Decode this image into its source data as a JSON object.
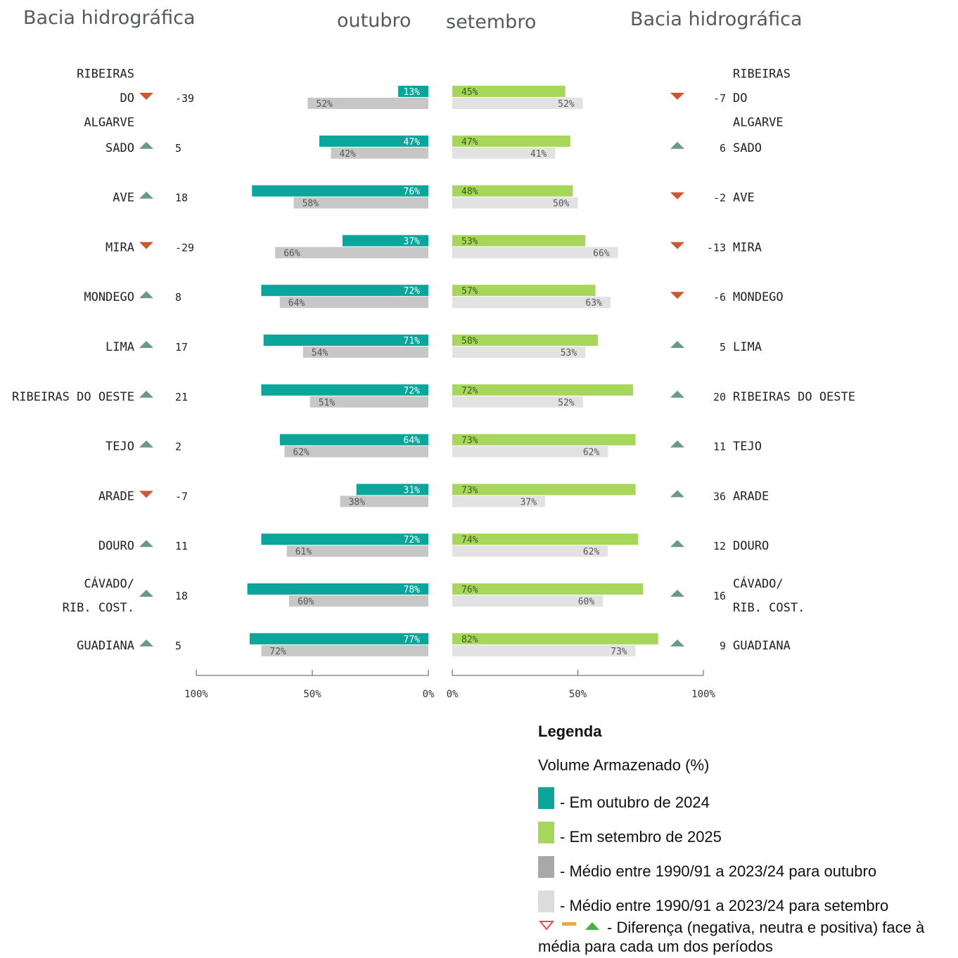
{
  "headers": {
    "left_basin": "Bacia hidrográfica",
    "oct": "outubro",
    "sep": "setembro",
    "right_basin": "Bacia hidrográfica"
  },
  "colors": {
    "oct": "#0aa69b",
    "sep": "#a6d65a",
    "oct_avg": "#c7c7c7",
    "sep_avg": "#e2e2e2",
    "down": "#c85a33",
    "up": "#6a9a82",
    "legend_neutral": "#f0a830"
  },
  "chart_data": {
    "type": "bar",
    "orientation": "horizontal, back-to-back",
    "xlim": [
      0,
      100
    ],
    "x_ticks_left": [
      "100%",
      "50%",
      "0%"
    ],
    "x_ticks_right": [
      "0%",
      "50%",
      "100%"
    ],
    "series": [
      {
        "name": "Em outubro de 2024",
        "values": [
          13,
          47,
          76,
          37,
          72,
          71,
          72,
          64,
          31,
          72,
          78,
          77
        ]
      },
      {
        "name": "Médio entre 1990/91 a 2023/24 para outubro",
        "values": [
          52,
          42,
          58,
          66,
          64,
          54,
          51,
          62,
          38,
          61,
          60,
          72
        ]
      },
      {
        "name": "Em setembro de 2025",
        "values": [
          45,
          47,
          48,
          53,
          57,
          58,
          72,
          73,
          73,
          74,
          76,
          82
        ]
      },
      {
        "name": "Médio entre 1990/91 a 2023/24 para setembro",
        "values": [
          52,
          41,
          50,
          66,
          63,
          53,
          52,
          62,
          37,
          62,
          60,
          73
        ]
      }
    ],
    "basins": [
      {
        "name": "RIBEIRAS DO ALGARVE",
        "lines": [
          "RIBEIRAS",
          "DO",
          "ALGARVE"
        ],
        "oct": 13,
        "oct_avg": 52,
        "oct_diff": "-39",
        "oct_dir": "down",
        "sep": 45,
        "sep_avg": 52,
        "sep_diff": "-7",
        "sep_dir": "down"
      },
      {
        "name": "SADO",
        "lines": [
          "SADO"
        ],
        "oct": 47,
        "oct_avg": 42,
        "oct_diff": "5",
        "oct_dir": "up",
        "sep": 47,
        "sep_avg": 41,
        "sep_diff": "6",
        "sep_dir": "up"
      },
      {
        "name": "AVE",
        "lines": [
          "AVE"
        ],
        "oct": 76,
        "oct_avg": 58,
        "oct_diff": "18",
        "oct_dir": "up",
        "sep": 48,
        "sep_avg": 50,
        "sep_diff": "-2",
        "sep_dir": "down"
      },
      {
        "name": "MIRA",
        "lines": [
          "MIRA"
        ],
        "oct": 37,
        "oct_avg": 66,
        "oct_diff": "-29",
        "oct_dir": "down",
        "sep": 53,
        "sep_avg": 66,
        "sep_diff": "-13",
        "sep_dir": "down"
      },
      {
        "name": "MONDEGO",
        "lines": [
          "MONDEGO"
        ],
        "oct": 72,
        "oct_avg": 64,
        "oct_diff": "8",
        "oct_dir": "up",
        "sep": 57,
        "sep_avg": 63,
        "sep_diff": "-6",
        "sep_dir": "down"
      },
      {
        "name": "LIMA",
        "lines": [
          "LIMA"
        ],
        "oct": 71,
        "oct_avg": 54,
        "oct_diff": "17",
        "oct_dir": "up",
        "sep": 58,
        "sep_avg": 53,
        "sep_diff": "5",
        "sep_dir": "up"
      },
      {
        "name": "RIBEIRAS DO OESTE",
        "lines": [
          "RIBEIRAS DO OESTE"
        ],
        "oct": 72,
        "oct_avg": 51,
        "oct_diff": "21",
        "oct_dir": "up",
        "sep": 72,
        "sep_avg": 52,
        "sep_diff": "20",
        "sep_dir": "up"
      },
      {
        "name": "TEJO",
        "lines": [
          "TEJO"
        ],
        "oct": 64,
        "oct_avg": 62,
        "oct_diff": "2",
        "oct_dir": "up",
        "sep": 73,
        "sep_avg": 62,
        "sep_diff": "11",
        "sep_dir": "up"
      },
      {
        "name": "ARADE",
        "lines": [
          "ARADE"
        ],
        "oct": 31,
        "oct_avg": 38,
        "oct_diff": "-7",
        "oct_dir": "down",
        "sep": 73,
        "sep_avg": 37,
        "sep_diff": "36",
        "sep_dir": "up"
      },
      {
        "name": "DOURO",
        "lines": [
          "DOURO"
        ],
        "oct": 72,
        "oct_avg": 61,
        "oct_diff": "11",
        "oct_dir": "up",
        "sep": 74,
        "sep_avg": 62,
        "sep_diff": "12",
        "sep_dir": "up"
      },
      {
        "name": "CÁVADO/ RIB. COST.",
        "lines": [
          "CÁVADO/",
          "RIB. COST."
        ],
        "oct": 78,
        "oct_avg": 60,
        "oct_diff": "18",
        "oct_dir": "up",
        "sep": 76,
        "sep_avg": 60,
        "sep_diff": "16",
        "sep_dir": "up"
      },
      {
        "name": "GUADIANA",
        "lines": [
          "GUADIANA"
        ],
        "oct": 77,
        "oct_avg": 72,
        "oct_diff": "5",
        "oct_dir": "up",
        "sep": 82,
        "sep_avg": 73,
        "sep_diff": "9",
        "sep_dir": "up"
      }
    ]
  },
  "legend": {
    "title": "Legenda",
    "subtitle": "Volume Armazenado (%)",
    "items": [
      {
        "label": "- Em outubro de 2024",
        "color": "#0aa69b"
      },
      {
        "label": "- Em setembro de 2025",
        "color": "#a6d65a"
      },
      {
        "label": "- Médio entre 1990/91 a 2023/24 para outubro",
        "color": "#a8a8a8"
      },
      {
        "label": "- Médio entre 1990/91 a 2023/24 para setembro",
        "color": "#dcdcdc"
      }
    ],
    "indicator_text_1": "- Diferença (negativa, neutra e positiva) face à",
    "indicator_text_2": "média para cada um dos períodos"
  }
}
